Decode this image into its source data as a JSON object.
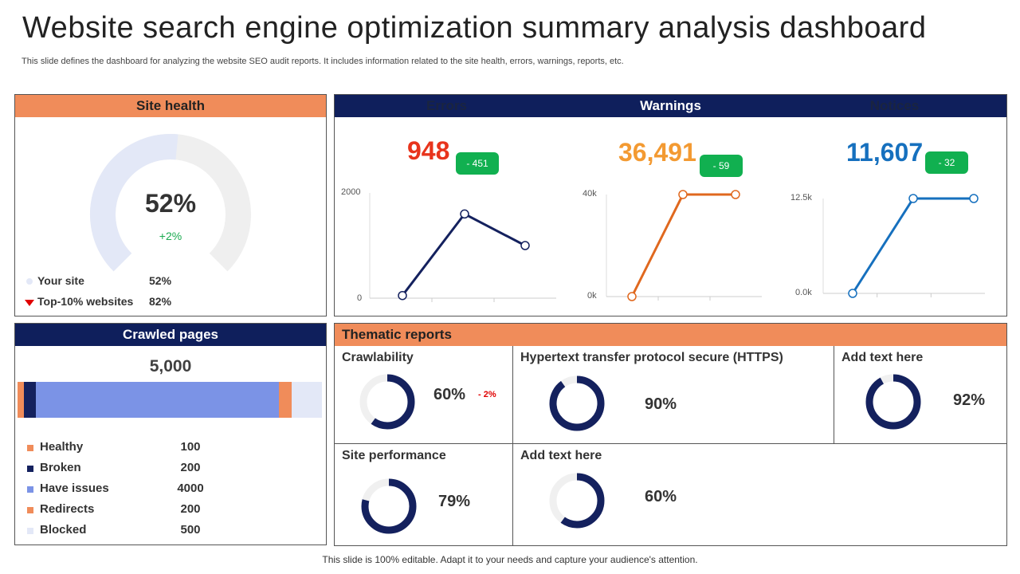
{
  "title": "Website search engine optimization summary analysis dashboard",
  "subtitle": "This slide defines the dashboard for analyzing the website SEO audit reports. It includes information related to the site health, errors, warnings, reports, etc.",
  "site_health": {
    "header": "Site health",
    "value": "52%",
    "change": "+2%",
    "gauge_fraction": 0.52,
    "legend": [
      {
        "label": "Your site",
        "value": "52%"
      },
      {
        "label": "Top-10% websites",
        "value": "82%"
      }
    ]
  },
  "issues": {
    "tabs": [
      "Errors",
      "Warnings",
      "Notices"
    ],
    "errors": {
      "value": "948",
      "delta": "- 451",
      "color": "#E8341C",
      "line_color": "#14215E",
      "yticks": [
        "2000",
        "0"
      ],
      "ylim": [
        0,
        2000
      ],
      "points": [
        50,
        1600,
        1000
      ]
    },
    "warnings": {
      "value": "36,491",
      "delta": "- 59",
      "color": "#F39A32",
      "line_color": "#E0681E",
      "yticks": [
        "40k",
        "0k"
      ],
      "ylim": [
        0,
        40000
      ],
      "points": [
        0,
        40000,
        40000
      ]
    },
    "notices": {
      "value": "11,607",
      "delta": "- 32",
      "color": "#1670BE",
      "line_color": "#1670BE",
      "yticks": [
        "12.5k",
        "0.0k"
      ],
      "ylim": [
        0,
        12500
      ],
      "points": [
        0,
        12500,
        12500
      ]
    }
  },
  "crawled": {
    "header": "Crawled pages",
    "total": "5,000",
    "items": [
      {
        "label": "Healthy",
        "value": "100",
        "color": "#F08C5A"
      },
      {
        "label": "Broken",
        "value": "200",
        "color": "#14215E"
      },
      {
        "label": "Have issues",
        "value": "4000",
        "color": "#7B93E6"
      },
      {
        "label": "Redirects",
        "value": "200",
        "color": "#F08C5A"
      },
      {
        "label": "Blocked",
        "value": "500",
        "color": "#E3E8F7"
      }
    ]
  },
  "thematic": {
    "header": "Thematic reports",
    "cells": [
      {
        "title": "Crawlability",
        "value": "60%",
        "fraction": 0.6,
        "delta": "- 2%"
      },
      {
        "title": "Hypertext transfer protocol secure (HTTPS)",
        "value": "90%",
        "fraction": 0.9
      },
      {
        "title": "Add text here",
        "value": "92%",
        "fraction": 0.92
      },
      {
        "title": "Site performance",
        "value": "79%",
        "fraction": 0.79
      },
      {
        "title": "Add text here",
        "value": "60%",
        "fraction": 0.6
      }
    ]
  },
  "footer": "This slide is 100% editable. Adapt it to your needs and capture your audience's attention."
}
